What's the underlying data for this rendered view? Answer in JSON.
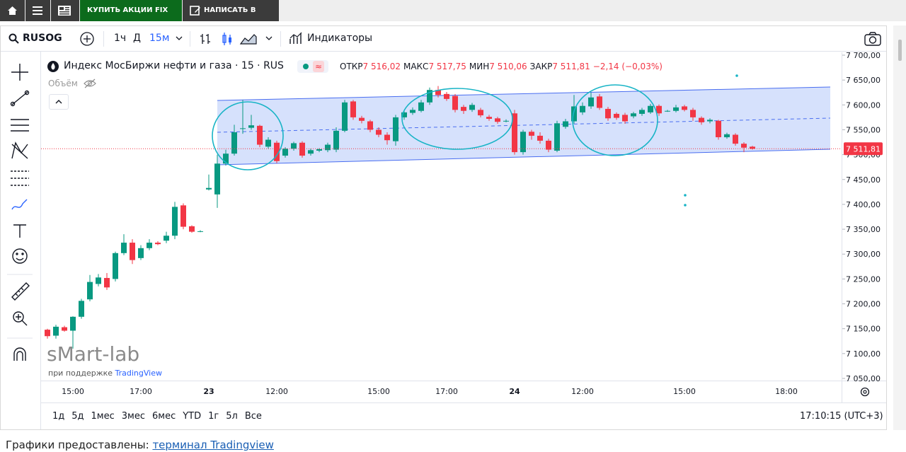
{
  "nav": {
    "buttons": [
      "КУПИТЬ АКЦИИ FIX PRICE",
      "НАПИСАТЬ В БЛОГ"
    ]
  },
  "toolbar": {
    "symbol": "RUSOG",
    "intervals": [
      "1ч",
      "Д",
      "15м"
    ],
    "indicators": "Индикаторы"
  },
  "legend": {
    "title": "Индекс МосБиржи нефти и газа · 15 · RUS",
    "fields": [
      {
        "label": "ОТКР",
        "value": "7 516,02"
      },
      {
        "label": "МАКС",
        "value": "7 517,75"
      },
      {
        "label": "МИН",
        "value": "7 510,06"
      },
      {
        "label": "ЗАКР",
        "value": "7 511,81"
      }
    ],
    "change": "−2,14 (−0,03%)",
    "volume": "Объём"
  },
  "watermark": {
    "brand": "sMart-lab",
    "support": "при поддержке",
    "provider": "TradingView"
  },
  "chart_data": {
    "type": "candlestick",
    "categories": [
      null,
      null,
      null,
      "15:00",
      null,
      null,
      null,
      null,
      null,
      null,
      null,
      "17:00",
      null,
      null,
      null,
      null,
      null,
      null,
      null,
      "23",
      null,
      null,
      null,
      null,
      null,
      null,
      null,
      "12:00",
      null,
      null,
      null,
      null,
      null,
      null,
      null,
      null,
      null,
      null,
      null,
      "15:00",
      null,
      null,
      null,
      null,
      null,
      null,
      null,
      "17:00",
      null,
      null,
      null,
      null,
      null,
      null,
      null,
      "24",
      null,
      null,
      null,
      null,
      null,
      null,
      null,
      "12:00",
      null,
      null,
      null,
      null,
      null,
      null,
      null,
      null,
      null,
      null,
      null,
      "15:00",
      null,
      null,
      null,
      null,
      null,
      null,
      null,
      null,
      null,
      null,
      null,
      "18:00"
    ],
    "open": [
      7148,
      7136,
      7153,
      7146,
      7174,
      7209,
      7240,
      7252,
      7250,
      7302,
      7323,
      7292,
      7312,
      7323,
      7327,
      7337,
      7398,
      7356,
      7346,
      7430,
      7420,
      7482,
      7502,
      7552,
      7554,
      7558,
      7516,
      7524,
      7498,
      7512,
      7524,
      7502,
      7508,
      7509,
      7510,
      7548,
      7607,
      7574,
      7567,
      7550,
      7540,
      7527,
      7575,
      7584,
      7588,
      7605,
      7630,
      7622,
      7618,
      7596,
      7590,
      7590,
      7576,
      7573,
      7568,
      7583,
      7505,
      7546,
      7538,
      7528,
      7508,
      7556,
      7567,
      7585,
      7597,
      7617,
      7592,
      7582,
      7580,
      7577,
      7582,
      7585,
      7598,
      7588,
      7588,
      7597,
      7590,
      7574,
      7567,
      7568,
      7535,
      7540,
      7522,
      7516.02,
      null,
      null,
      null,
      null
    ],
    "high": [
      7150,
      7158,
      7156,
      7175,
      7210,
      7258,
      7260,
      7262,
      7305,
      7340,
      7330,
      7318,
      7330,
      7326,
      7345,
      7405,
      7402,
      7358,
      7348,
      7460,
      7500,
      7510,
      7560,
      7610,
      7580,
      7560,
      7535,
      7528,
      7515,
      7526,
      7527,
      7512,
      7513,
      7524,
      7555,
      7610,
      7610,
      7578,
      7570,
      7555,
      7545,
      7580,
      7590,
      7595,
      7610,
      7635,
      7638,
      7626,
      7622,
      7600,
      7604,
      7594,
      7580,
      7576,
      7571,
      7590,
      7550,
      7550,
      7545,
      7532,
      7568,
      7572,
      7620,
      7605,
      7625,
      7622,
      7596,
      7585,
      7584,
      7586,
      7594,
      7602,
      7601,
      7590,
      7600,
      7600,
      7594,
      7577,
      7573,
      7570,
      7544,
      7543,
      7525,
      7517.75,
      null,
      null,
      null,
      null
    ],
    "low": [
      7130,
      7130,
      7144,
      7110,
      7170,
      7205,
      7235,
      7228,
      7245,
      7298,
      7280,
      7288,
      7308,
      7318,
      7322,
      7330,
      7350,
      7343,
      7344,
      7428,
      7393,
      7478,
      7498,
      7542,
      7550,
      7515,
      7512,
      7483,
      7494,
      7508,
      7494,
      7498,
      7505,
      7505,
      7505,
      7545,
      7570,
      7563,
      7545,
      7535,
      7520,
      7518,
      7570,
      7580,
      7585,
      7600,
      7615,
      7608,
      7585,
      7582,
      7586,
      7575,
      7568,
      7562,
      7565,
      7500,
      7500,
      7530,
      7522,
      7505,
      7505,
      7552,
      7562,
      7580,
      7592,
      7590,
      7568,
      7570,
      7562,
      7573,
      7578,
      7582,
      7578,
      7586,
      7585,
      7587,
      7568,
      7560,
      7563,
      7530,
      7532,
      7518,
      7505,
      7510.06,
      null,
      null,
      null,
      null
    ],
    "close": [
      7135,
      7154,
      7146,
      7174,
      7206,
      7244,
      7253,
      7233,
      7302,
      7323,
      7288,
      7312,
      7323,
      7320,
      7337,
      7395,
      7355,
      7345,
      7346,
      7433,
      7482,
      7502,
      7545,
      7553,
      7559,
      7520,
      7530,
      7487,
      7512,
      7523,
      7498,
      7509,
      7511,
      7520,
      7548,
      7605,
      7575,
      7568,
      7550,
      7540,
      7529,
      7575,
      7585,
      7590,
      7605,
      7630,
      7620,
      7612,
      7590,
      7588,
      7600,
      7579,
      7572,
      7566,
      7568,
      7505,
      7546,
      7538,
      7528,
      7510,
      7563,
      7567,
      7597,
      7598,
      7615,
      7594,
      7573,
      7574,
      7567,
      7583,
      7590,
      7598,
      7583,
      7588,
      7595,
      7590,
      7575,
      7565,
      7570,
      7535,
      7541,
      7522,
      7514,
      7511.81,
      null,
      null,
      null,
      null
    ],
    "up_color": "#089981",
    "down_color": "#f23645",
    "last_label": "7 511,81",
    "ylim": [
      7050,
      7700
    ],
    "yticks": [
      {
        "value": 7050,
        "label": "7 050,00"
      },
      {
        "value": 7100,
        "label": "7 100,00"
      },
      {
        "value": 7150,
        "label": "7 150,00"
      },
      {
        "value": 7200,
        "label": "7 200,00"
      },
      {
        "value": 7250,
        "label": "7 250,00"
      },
      {
        "value": 7300,
        "label": "7 300,00"
      },
      {
        "value": 7350,
        "label": "7 350,00"
      },
      {
        "value": 7400,
        "label": "7 400,00"
      },
      {
        "value": 7450,
        "label": "7 450,00"
      },
      {
        "value": 7500,
        "label": "7 500,00"
      },
      {
        "value": 7550,
        "label": "7 550,00"
      },
      {
        "value": 7600,
        "label": "7 600,00"
      },
      {
        "value": 7650,
        "label": "7 650,00"
      },
      {
        "value": 7700,
        "label": "7 700,00"
      }
    ],
    "grid": false
  },
  "ranges": [
    "1д",
    "5д",
    "1мес",
    "3мес",
    "6мес",
    "YTD",
    "1г",
    "5л",
    "Все"
  ],
  "clock": "17:10:15 (UTC+3)",
  "footer": {
    "text": "Графики предоставлены:",
    "link": "терминал Tradingview"
  }
}
